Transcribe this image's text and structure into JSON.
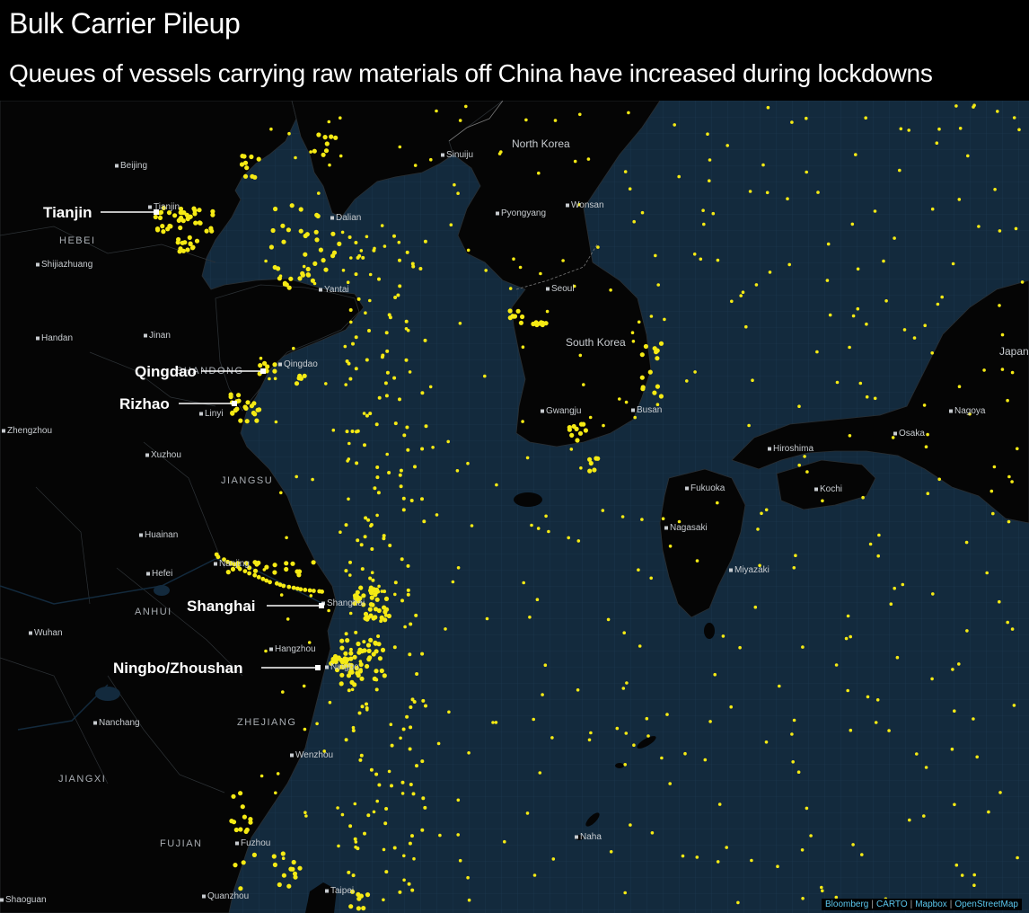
{
  "title": "Bulk Carrier Pileup",
  "subtitle": "Queues of vessels carrying raw materials off China have increased during lockdowns",
  "ports": [
    "Tianjin",
    "Qingdao",
    "Rizhao",
    "Shanghai",
    "Ningbo/Zhoushan"
  ],
  "cities": [
    "Beijing",
    "Tianjin",
    "Shijiazhuang",
    "Dalian",
    "Yantai",
    "Handan",
    "Jinan",
    "Qingdao",
    "Linyi",
    "Zhengzhou",
    "Xuzhou",
    "Huainan",
    "Nanjing",
    "Hefei",
    "Shanghai",
    "Wuhan",
    "Hangzhou",
    "Ningbo",
    "Nanchang",
    "Wenzhou",
    "Fuzhou",
    "Quanzhou",
    "Shaoguan",
    "Taipei",
    "Naha",
    "Sinuiju",
    "Pyongyang",
    "Wonsan",
    "Seoul",
    "Gwangju",
    "Busan",
    "Fukuoka",
    "Nagasaki",
    "Miyazaki",
    "Hiroshima",
    "Kochi",
    "Osaka",
    "Nagoya"
  ],
  "regions": [
    "HEBEI",
    "JIANGSU",
    "ANHUI",
    "ZHEJIANG",
    "JIANGXI",
    "FUJIAN",
    "SHANDONG"
  ],
  "countries": [
    "North Korea",
    "South Korea",
    "Japan"
  ],
  "attribution": [
    "Bloomberg",
    "CARTO",
    "Mapbox",
    "OpenStreetMap"
  ],
  "colors": {
    "ocean": "#132a3d",
    "land": "#050505",
    "vessel": "#f5ea14",
    "grid": "#1e3a52"
  }
}
